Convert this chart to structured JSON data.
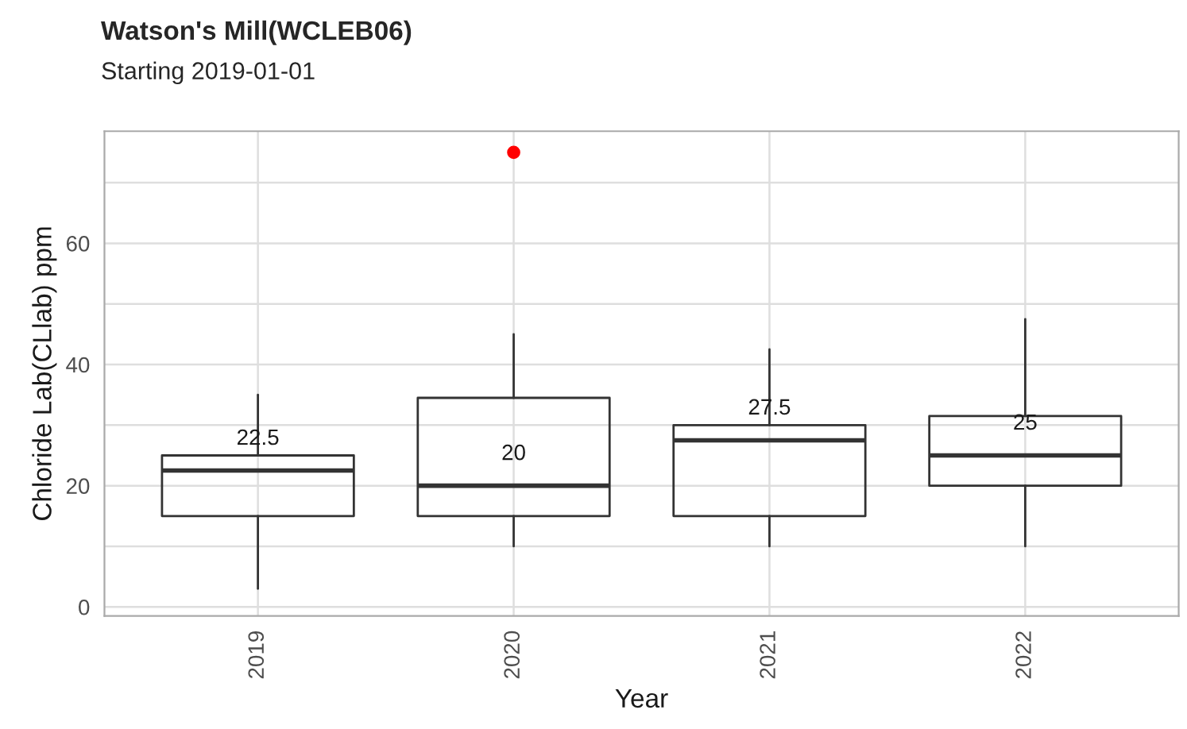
{
  "chart_data": {
    "type": "box",
    "title": "Watson's Mill(WCLEB06)",
    "subtitle": "Starting 2019-01-01",
    "xlabel": "Year",
    "ylabel": "Chloride Lab(CLlab) ppm",
    "categories": [
      "2019",
      "2020",
      "2021",
      "2022"
    ],
    "boxes": [
      {
        "low": 3,
        "q1": 15,
        "median": 22.5,
        "q3": 25,
        "high": 35
      },
      {
        "low": 10,
        "q1": 15,
        "median": 20,
        "q3": 34.5,
        "high": 45,
        "outliers": [
          75
        ]
      },
      {
        "low": 10,
        "q1": 15,
        "median": 27.5,
        "q3": 30,
        "high": 42.5
      },
      {
        "low": 10,
        "q1": 20,
        "median": 25,
        "q3": 31.5,
        "high": 47.5
      }
    ],
    "value_labels": [
      "22.5",
      "20",
      "27.5",
      "25"
    ],
    "ylim": [
      -1.5,
      78.5
    ],
    "yticks": [
      0,
      {
        "value": 10,
        "label": null
      },
      20,
      {
        "value": 30,
        "label": null
      },
      40,
      {
        "value": 50,
        "label": null
      },
      60,
      {
        "value": 70,
        "label": null
      }
    ],
    "grid": true
  }
}
